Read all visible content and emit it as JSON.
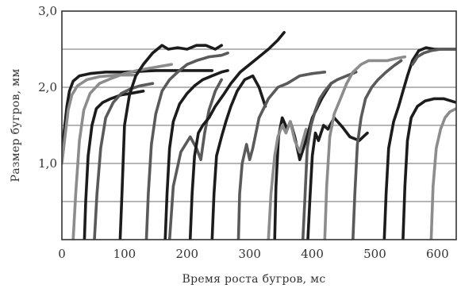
{
  "chart_data": {
    "type": "line",
    "xlabel": "Время роста бугров, мс",
    "ylabel": "Размер бугров, мм",
    "xlim": [
      0,
      630
    ],
    "ylim": [
      0,
      3.0
    ],
    "x_ticks": [
      {
        "value": 0,
        "label": "0"
      },
      {
        "value": 100,
        "label": "100"
      },
      {
        "value": 200,
        "label": "200"
      },
      {
        "value": 300,
        "label": "300"
      },
      {
        "value": 400,
        "label": "400"
      },
      {
        "value": 500,
        "label": "500"
      },
      {
        "value": 600,
        "label": "600"
      }
    ],
    "y_ticks": [
      {
        "value": 1.0,
        "label": "1,0"
      },
      {
        "value": 2.0,
        "label": "2,0"
      },
      {
        "value": 3.0,
        "label": "3,0"
      }
    ],
    "gridlines_y": [
      0.5,
      1.0,
      1.5,
      2.0,
      2.5
    ],
    "grid": "horizontal",
    "colors": {
      "dark": "#1c1c1c",
      "medium": "#5a5a5a",
      "light": "#8c8c8c",
      "grid": "#8a8a8a",
      "frame": "#333333"
    },
    "series": [
      {
        "shade": "dark",
        "x": [
          0,
          4,
          8,
          12,
          18,
          28,
          45,
          70,
          100,
          150,
          200,
          240
        ],
        "y": [
          1.15,
          1.45,
          1.75,
          1.95,
          2.08,
          2.15,
          2.18,
          2.2,
          2.2,
          2.22,
          2.22,
          2.22
        ]
      },
      {
        "shade": "light",
        "x": [
          0,
          5,
          10,
          16,
          25,
          40,
          60,
          90,
          115
        ],
        "y": [
          1.0,
          1.35,
          1.7,
          1.9,
          2.02,
          2.1,
          2.14,
          2.16,
          2.16
        ]
      },
      {
        "shade": "light",
        "x": [
          18,
          22,
          28,
          35,
          45,
          60,
          80,
          100,
          120,
          140,
          175
        ],
        "y": [
          0.0,
          0.6,
          1.3,
          1.7,
          1.92,
          2.05,
          2.12,
          2.18,
          2.22,
          2.25,
          2.3
        ]
      },
      {
        "shade": "dark",
        "x": [
          36,
          38,
          42,
          48,
          55,
          65,
          78,
          95,
          110,
          130
        ],
        "y": [
          0.0,
          0.5,
          1.1,
          1.5,
          1.72,
          1.8,
          1.85,
          1.9,
          1.92,
          1.95
        ]
      },
      {
        "shade": "medium",
        "x": [
          52,
          56,
          62,
          70,
          82,
          95,
          110,
          125,
          145
        ],
        "y": [
          0.0,
          0.6,
          1.2,
          1.6,
          1.8,
          1.92,
          1.98,
          2.02,
          2.05
        ]
      },
      {
        "shade": "dark",
        "x": [
          93,
          96,
          100,
          108,
          118,
          130,
          145,
          160,
          170,
          185,
          200,
          215,
          230,
          245,
          255
        ],
        "y": [
          0.0,
          0.6,
          1.5,
          1.9,
          2.15,
          2.3,
          2.45,
          2.55,
          2.5,
          2.52,
          2.5,
          2.55,
          2.55,
          2.5,
          2.55
        ]
      },
      {
        "shade": "medium",
        "x": [
          135,
          138,
          143,
          150,
          160,
          172,
          185,
          200,
          215,
          235,
          255,
          265
        ],
        "y": [
          0.0,
          0.6,
          1.25,
          1.65,
          1.95,
          2.1,
          2.2,
          2.3,
          2.35,
          2.4,
          2.42,
          2.45
        ]
      },
      {
        "shade": "dark",
        "x": [
          165,
          168,
          172,
          178,
          188,
          200,
          212,
          225,
          240,
          255,
          265
        ],
        "y": [
          0.0,
          0.6,
          1.2,
          1.55,
          1.78,
          1.92,
          2.02,
          2.1,
          2.15,
          2.2,
          2.22
        ]
      },
      {
        "shade": "medium",
        "x": [
          172,
          178,
          190,
          205,
          215,
          222,
          228,
          235,
          245,
          255
        ],
        "y": [
          0.0,
          0.7,
          1.15,
          1.35,
          1.2,
          1.05,
          1.4,
          1.7,
          1.95,
          2.1
        ]
      },
      {
        "shade": "dark",
        "x": [
          205,
          208,
          212,
          218,
          225,
          235,
          245,
          258,
          270,
          285,
          300,
          315,
          330,
          345,
          355
        ],
        "y": [
          0.0,
          0.6,
          1.1,
          1.4,
          1.5,
          1.6,
          1.75,
          1.9,
          2.05,
          2.2,
          2.3,
          2.4,
          2.5,
          2.62,
          2.72
        ]
      },
      {
        "shade": "dark",
        "x": [
          240,
          243,
          247,
          255,
          262,
          270,
          280,
          292,
          305,
          315,
          325
        ],
        "y": [
          0.0,
          0.6,
          1.1,
          1.35,
          1.55,
          1.75,
          1.95,
          2.1,
          2.15,
          2.0,
          1.75
        ]
      },
      {
        "shade": "medium",
        "x": [
          282,
          284,
          288,
          295,
          300,
          305,
          315,
          330,
          345,
          360,
          380,
          400,
          420
        ],
        "y": [
          0.0,
          0.6,
          1.0,
          1.25,
          1.05,
          1.2,
          1.6,
          1.85,
          2.0,
          2.05,
          2.15,
          2.18,
          2.2
        ]
      },
      {
        "shade": "dark",
        "x": [
          340,
          342,
          346,
          352,
          360,
          365,
          372,
          380,
          388,
          400,
          415,
          430
        ],
        "y": [
          0.0,
          0.7,
          1.35,
          1.6,
          1.45,
          1.55,
          1.35,
          1.05,
          1.25,
          1.6,
          1.85,
          2.05
        ]
      },
      {
        "shade": "light",
        "x": [
          330,
          334,
          340,
          345,
          352,
          358,
          365,
          372,
          380,
          390
        ],
        "y": [
          0.0,
          0.6,
          1.1,
          1.35,
          1.5,
          1.4,
          1.55,
          1.3,
          1.15,
          1.45
        ]
      },
      {
        "shade": "dark",
        "x": [
          393,
          396,
          400,
          405,
          410,
          418,
          425,
          435,
          448,
          460,
          475,
          488
        ],
        "y": [
          0.0,
          0.5,
          1.1,
          1.4,
          1.3,
          1.5,
          1.45,
          1.6,
          1.48,
          1.35,
          1.3,
          1.4
        ]
      },
      {
        "shade": "medium",
        "x": [
          385,
          388,
          392,
          398,
          405,
          412,
          420,
          430,
          440,
          455,
          470
        ],
        "y": [
          0.0,
          0.5,
          1.2,
          1.5,
          1.7,
          1.85,
          1.95,
          2.05,
          2.1,
          2.15,
          2.2
        ]
      },
      {
        "shade": "light",
        "x": [
          420,
          423,
          428,
          435,
          445,
          455,
          465,
          478,
          490,
          505,
          520,
          535,
          548
        ],
        "y": [
          0.0,
          0.7,
          1.35,
          1.65,
          1.85,
          2.05,
          2.2,
          2.3,
          2.35,
          2.35,
          2.35,
          2.38,
          2.4
        ]
      },
      {
        "shade": "medium",
        "x": [
          465,
          468,
          472,
          478,
          485,
          495,
          505,
          518,
          530,
          542
        ],
        "y": [
          0.0,
          0.6,
          1.25,
          1.6,
          1.85,
          2.0,
          2.1,
          2.2,
          2.28,
          2.35
        ]
      },
      {
        "shade": "dark",
        "x": [
          515,
          518,
          522,
          530,
          538,
          545,
          552,
          560,
          570,
          582,
          595,
          610,
          630
        ],
        "y": [
          0.0,
          0.6,
          1.2,
          1.55,
          1.75,
          1.95,
          2.15,
          2.35,
          2.48,
          2.52,
          2.5,
          2.5,
          2.5
        ]
      },
      {
        "shade": "dark",
        "x": [
          545,
          548,
          552,
          558,
          568,
          580,
          595,
          610,
          630
        ],
        "y": [
          0.0,
          0.7,
          1.3,
          1.6,
          1.75,
          1.82,
          1.85,
          1.85,
          1.8
        ]
      },
      {
        "shade": "light",
        "x": [
          590,
          593,
          598,
          605,
          612,
          620,
          630
        ],
        "y": [
          0.0,
          0.7,
          1.2,
          1.45,
          1.6,
          1.68,
          1.72
        ]
      },
      {
        "shade": "medium",
        "x": [
          560,
          568,
          578,
          590,
          605,
          620,
          630
        ],
        "y": [
          2.3,
          2.4,
          2.45,
          2.48,
          2.5,
          2.5,
          2.5
        ]
      }
    ]
  }
}
